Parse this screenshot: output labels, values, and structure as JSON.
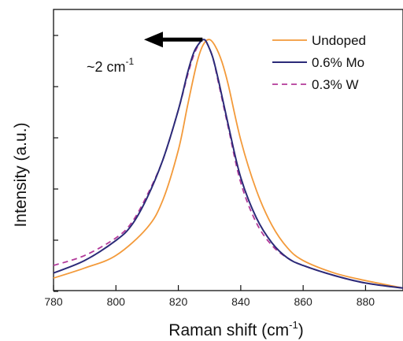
{
  "chart_data": {
    "type": "line",
    "xlabel_main": "Raman shift (cm",
    "xlabel_sup": "-1",
    "xlabel_close": ")",
    "ylabel": "Intensity (a.u.)",
    "xlim": [
      780,
      892
    ],
    "ylim": [
      0,
      1.12
    ],
    "x_ticks": [
      780,
      800,
      820,
      840,
      860,
      880
    ],
    "y_ticks_count": 6,
    "annotation": {
      "text_main": "~2 cm",
      "text_sup": "-1",
      "arrow_from_x": 828.5,
      "arrow_to_x": 809,
      "arrow_y": 1.0
    },
    "series": [
      {
        "name": "Undoped",
        "color": "#f39a3a",
        "style": "solid",
        "x": [
          780,
          790,
          800,
          810,
          815,
          820,
          823,
          826,
          828,
          830,
          832,
          834,
          836,
          840,
          845,
          850,
          855,
          860,
          870,
          880,
          892
        ],
        "y": [
          0.05,
          0.09,
          0.14,
          0.25,
          0.36,
          0.56,
          0.74,
          0.91,
          0.98,
          1.0,
          0.97,
          0.91,
          0.82,
          0.6,
          0.4,
          0.26,
          0.17,
          0.12,
          0.07,
          0.04,
          0.01
        ]
      },
      {
        "name": "0.6% Mo",
        "color": "#2b2a78",
        "style": "solid",
        "x": [
          780,
          790,
          800,
          805,
          810,
          815,
          820,
          823,
          825,
          827,
          828,
          829,
          831,
          833,
          836,
          840,
          845,
          850,
          855,
          860,
          870,
          880,
          892
        ],
        "y": [
          0.07,
          0.12,
          0.2,
          0.26,
          0.37,
          0.52,
          0.72,
          0.87,
          0.95,
          0.99,
          1.0,
          0.99,
          0.93,
          0.83,
          0.66,
          0.45,
          0.29,
          0.19,
          0.13,
          0.1,
          0.06,
          0.03,
          0.01
        ]
      },
      {
        "name": "0.3% W",
        "color": "#b23a9a",
        "style": "dashed",
        "x": [
          780,
          790,
          800,
          805,
          810,
          815,
          820,
          823,
          825,
          827,
          828,
          829,
          831,
          833,
          836,
          840,
          845,
          850,
          855,
          860,
          870,
          880,
          892
        ],
        "y": [
          0.1,
          0.14,
          0.21,
          0.27,
          0.38,
          0.52,
          0.72,
          0.86,
          0.94,
          0.99,
          1.0,
          0.99,
          0.93,
          0.82,
          0.65,
          0.43,
          0.27,
          0.18,
          0.13,
          0.1,
          0.06,
          0.03,
          0.01
        ]
      }
    ],
    "legend_position": "top-right",
    "grid": false
  }
}
